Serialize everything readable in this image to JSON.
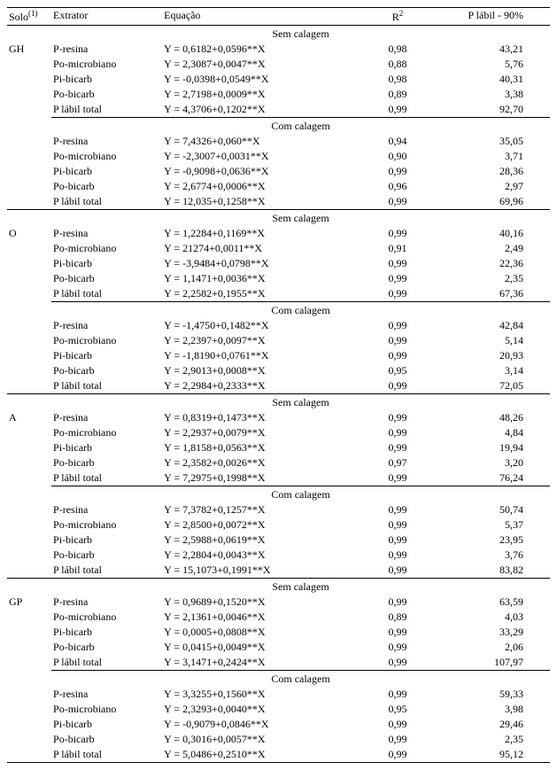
{
  "header": {
    "solo": "Solo",
    "solo_sup": "(1)",
    "extrator": "Extrator",
    "equacao": "Equação",
    "r2": "R",
    "r2_sup": "2",
    "plabil": "P lábil - 90%"
  },
  "labels": {
    "sem": "Sem calagem",
    "com": "Com calagem"
  },
  "soils": [
    {
      "code": "GH",
      "blocks": [
        {
          "label_key": "sem",
          "rows": [
            {
              "extr": "P-resina",
              "eq": "Y = 0,6182+0,0596**X",
              "r2": "0,98",
              "pl": "43,21"
            },
            {
              "extr": "Po-microbiano",
              "eq": "Y = 2,3087+0,0047**X",
              "r2": "0,88",
              "pl": "5,76"
            },
            {
              "extr": "Pi-bicarb",
              "eq": "Y = -0,0398+0,0549**X",
              "r2": "0,98",
              "pl": "40,31"
            },
            {
              "extr": "Po-bicarb",
              "eq": "Y = 2,7198+0,0009**X",
              "r2": "0,89",
              "pl": "3,38"
            },
            {
              "extr": "P lábil total",
              "eq": "Y = 4,3706+0,1202**X",
              "r2": "0,99",
              "pl": "92,70"
            }
          ]
        },
        {
          "label_key": "com",
          "rows": [
            {
              "extr": "P-resina",
              "eq": "Y = 7,4326+0,060**X",
              "r2": "0,94",
              "pl": "35,05"
            },
            {
              "extr": "Po-microbiano",
              "eq": "Y = -2,3007+0,0031**X",
              "r2": "0,90",
              "pl": "3,71"
            },
            {
              "extr": "Pi-bicarb",
              "eq": "Y = -0,9098+0,0636**X",
              "r2": "0,99",
              "pl": "28,36"
            },
            {
              "extr": "Po-bicarb",
              "eq": "Y = 2,6774+0,0006**X",
              "r2": "0,96",
              "pl": "2,97"
            },
            {
              "extr": "P lábil total",
              "eq": "Y = 12,035+0,1258**X",
              "r2": "0,99",
              "pl": "69,96"
            }
          ]
        }
      ]
    },
    {
      "code": "O",
      "blocks": [
        {
          "label_key": "sem",
          "rows": [
            {
              "extr": "P-resina",
              "eq": "Y = 1,2284+0,1169**X",
              "r2": "0,99",
              "pl": "40,16"
            },
            {
              "extr": "Po-microbiano",
              "eq": "Y = 21274+0,0011**X",
              "r2": "0,91",
              "pl": "2,49"
            },
            {
              "extr": "Pi-bicarb",
              "eq": "Y = -3,9484+0,0798**X",
              "r2": "0,99",
              "pl": "22,36"
            },
            {
              "extr": "Po-bicarb",
              "eq": "Y = 1,1471+0,0036**X",
              "r2": "0,99",
              "pl": "2,35"
            },
            {
              "extr": "P lábil total",
              "eq": "Y = 2,2582+0,1955**X",
              "r2": "0,99",
              "pl": "67,36"
            }
          ]
        },
        {
          "label_key": "com",
          "rows": [
            {
              "extr": "P-resina",
              "eq": "Y = -1,4750+0,1482**X",
              "r2": "0,99",
              "pl": "42,84"
            },
            {
              "extr": "Po-microbiano",
              "eq": "Y = 2,2397+0,0097**X",
              "r2": "0,99",
              "pl": "5,14"
            },
            {
              "extr": "Pi-bicarb",
              "eq": "Y = -1,8190+0,0761**X",
              "r2": "0,99",
              "pl": "20,93"
            },
            {
              "extr": "Po-bicarb",
              "eq": "Y = 2,9013+0,0008**X",
              "r2": "0,95",
              "pl": "3,14"
            },
            {
              "extr": "P lábil total",
              "eq": "Y = 2,2984+0,2333**X",
              "r2": "0,99",
              "pl": "72,05"
            }
          ]
        }
      ]
    },
    {
      "code": "A",
      "blocks": [
        {
          "label_key": "sem",
          "rows": [
            {
              "extr": "P-resina",
              "eq": "Y = 0,8319+0,1473**X",
              "r2": "0,99",
              "pl": "48,26"
            },
            {
              "extr": "Po-microbiano",
              "eq": "Y = 2,2937+0,0079**X",
              "r2": "0,99",
              "pl": "4,84"
            },
            {
              "extr": "Pi-bicarb",
              "eq": "Y = 1,8158+0,0563**X",
              "r2": "0,99",
              "pl": "19,94"
            },
            {
              "extr": "Po-bicarb",
              "eq": "Y = 2,3582+0,0026**X",
              "r2": "0,97",
              "pl": "3,20"
            },
            {
              "extr": "P lábil total",
              "eq": "Y = 7,2975+0,1998**X",
              "r2": "0,99",
              "pl": "76,24"
            }
          ]
        },
        {
          "label_key": "com",
          "rows": [
            {
              "extr": "P-resina",
              "eq": "Y = 7,3782+0,1257**X",
              "r2": "0,99",
              "pl": "50,74"
            },
            {
              "extr": "Po-microbiano",
              "eq": "Y = 2,8500+0,0072**X",
              "r2": "0,99",
              "pl": "5,37"
            },
            {
              "extr": "Pi-bicarb",
              "eq": "Y = 2,5988+0,0619**X",
              "r2": "0,99",
              "pl": "23,95"
            },
            {
              "extr": "Po-bicarb",
              "eq": "Y = 2,2804+0,0043**X",
              "r2": "0,99",
              "pl": "3,76"
            },
            {
              "extr": "P lábil total",
              "eq": "Y = 15,1073+0,1991**X",
              "r2": "0,99",
              "pl": "83,82"
            }
          ]
        }
      ]
    },
    {
      "code": "GP",
      "blocks": [
        {
          "label_key": "sem",
          "rows": [
            {
              "extr": "P-resina",
              "eq": "Y = 0,9689+0,1520**X",
              "r2": "0,99",
              "pl": "63,59"
            },
            {
              "extr": "Po-microbiano",
              "eq": "Y = 2,1361+0,0046**X",
              "r2": "0,89",
              "pl": "4,03"
            },
            {
              "extr": "Pi-bicarb",
              "eq": "Y = 0,0005+0,0808**X",
              "r2": "0,99",
              "pl": "33,29"
            },
            {
              "extr": "Po-bicarb",
              "eq": "Y = 0,0415+0,0049**X",
              "r2": "0,99",
              "pl": "2,06"
            },
            {
              "extr": "P lábil total",
              "eq": "Y = 3,1471+0,2424**X",
              "r2": "0,99",
              "pl": "107,97"
            }
          ]
        },
        {
          "label_key": "com",
          "rows": [
            {
              "extr": "P-resina",
              "eq": "Y = 3,3255+0,1560**X",
              "r2": "0,99",
              "pl": "59,33"
            },
            {
              "extr": "Po-microbiano",
              "eq": "Y = 2,3293+0,0040**X",
              "r2": "0,95",
              "pl": "3,98"
            },
            {
              "extr": "Pi-bicarb",
              "eq": "Y = -0,9079+0,0846**X",
              "r2": "0,99",
              "pl": "29,46"
            },
            {
              "extr": "Po-bicarb",
              "eq": "Y = 0,3016+0,0057**X",
              "r2": "0,99",
              "pl": "2,35"
            },
            {
              "extr": "P lábil total",
              "eq": "Y = 5,0486+0,2510**X",
              "r2": "0,99",
              "pl": "95,12"
            }
          ]
        }
      ]
    }
  ]
}
